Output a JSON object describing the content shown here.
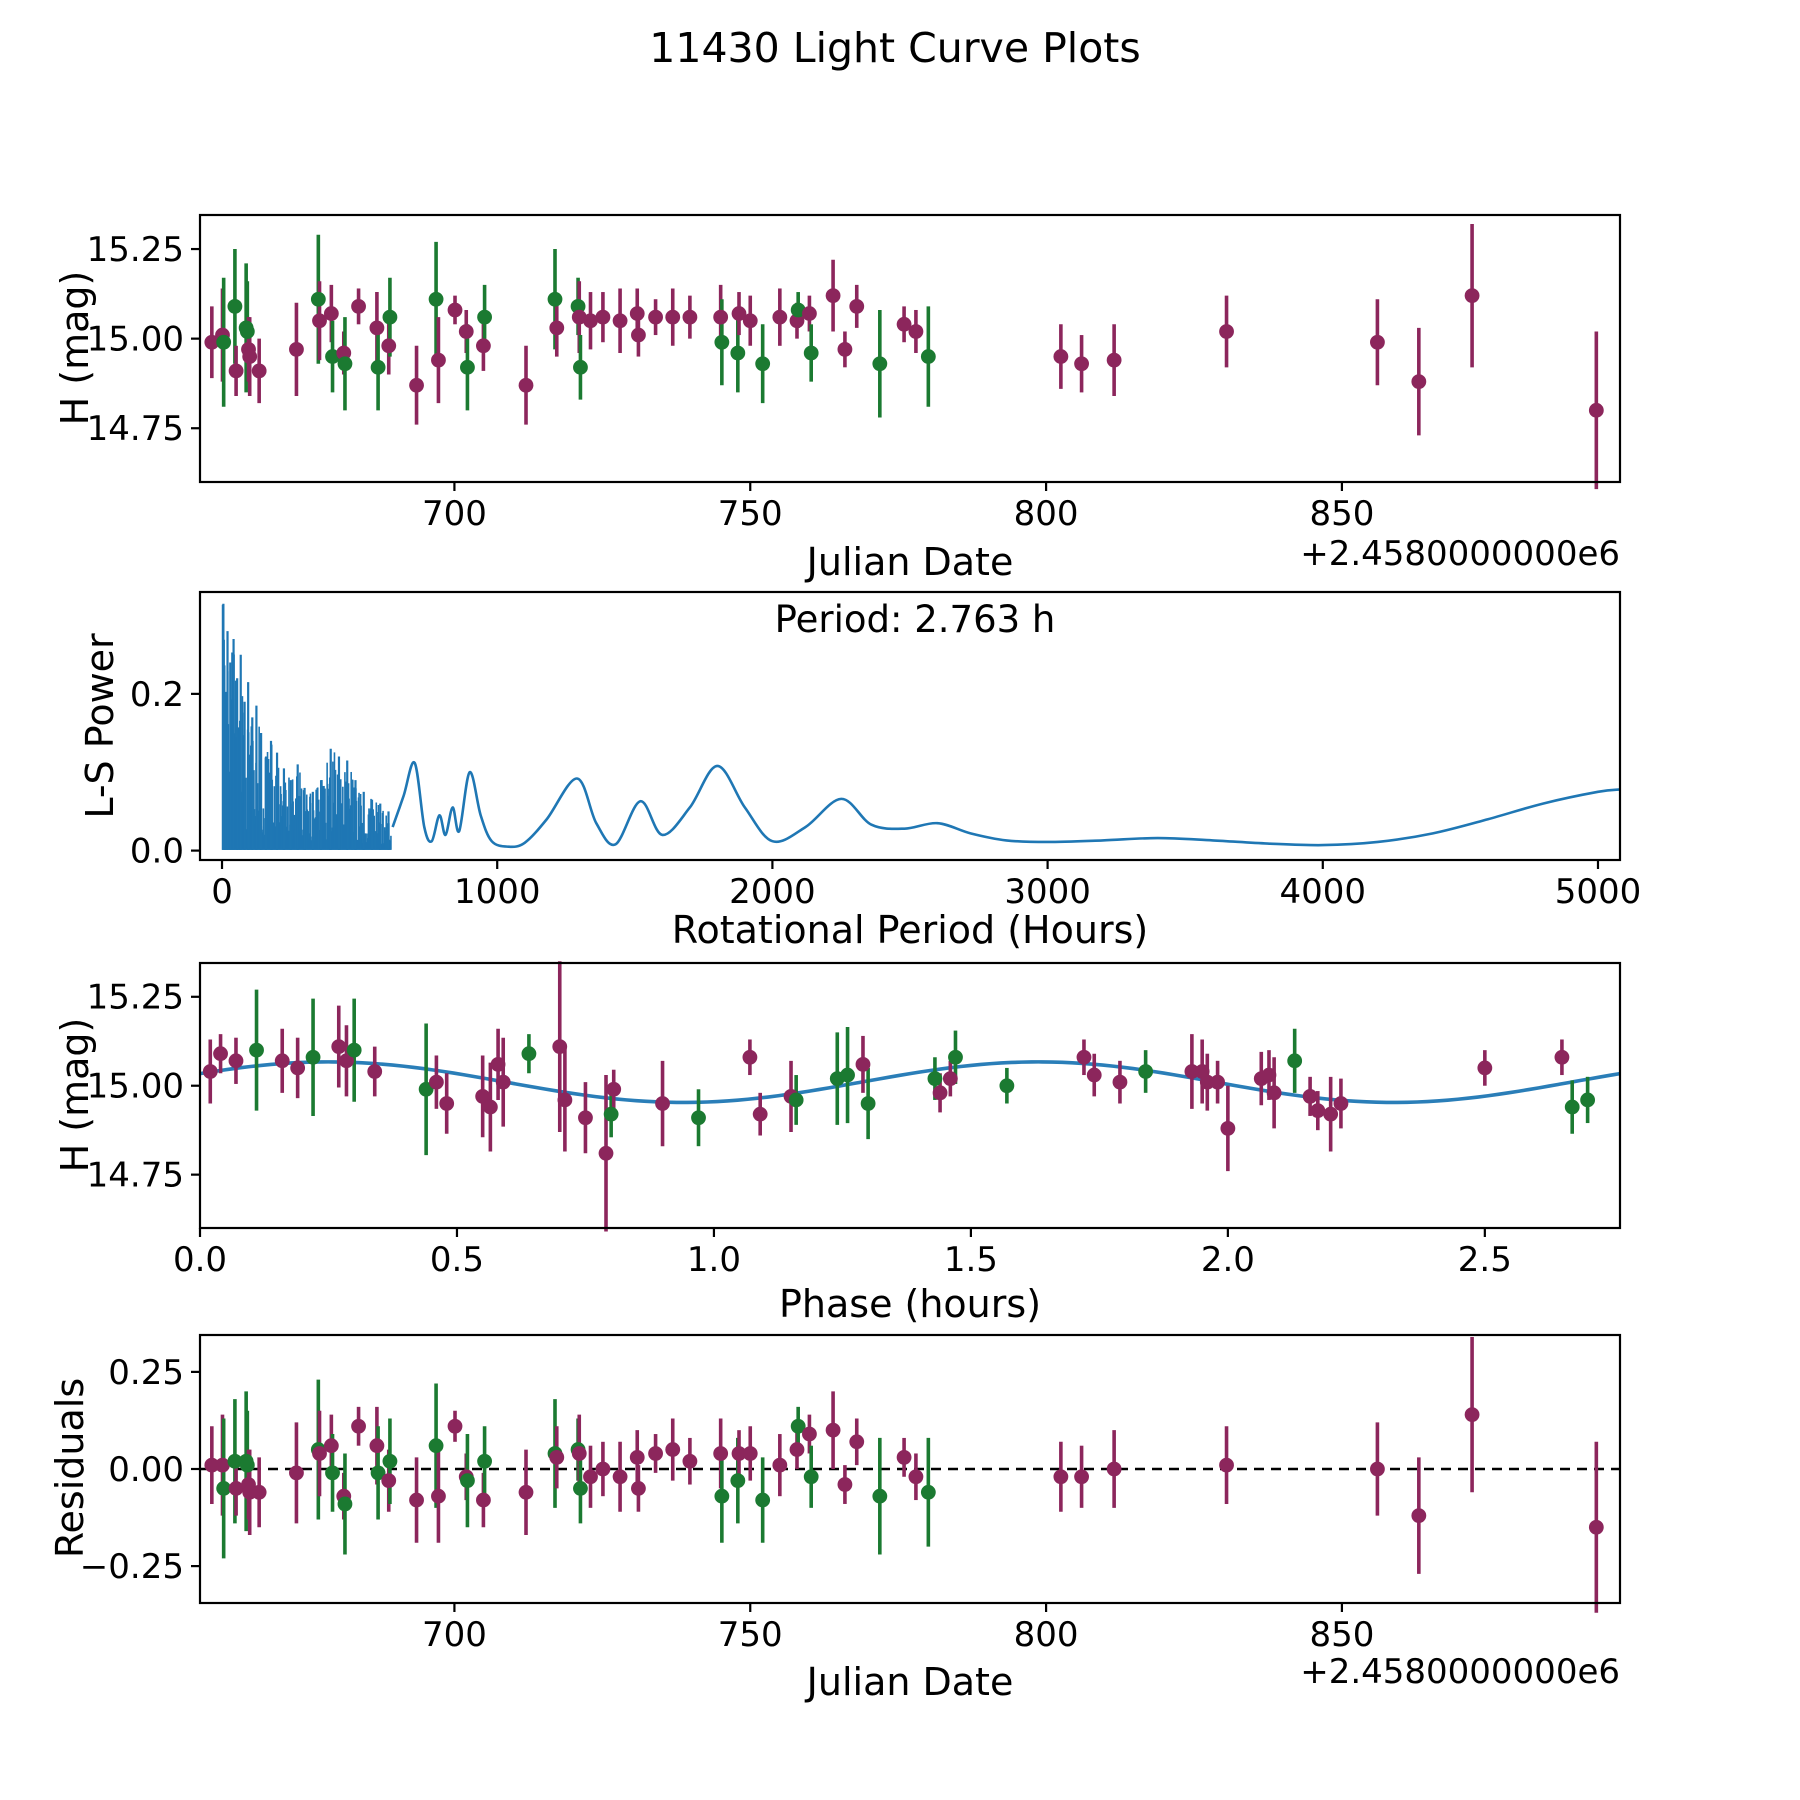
{
  "title": "11430 Light Curve Plots",
  "colors": {
    "series_purple": "#8C265C",
    "series_green": "#1B7A31",
    "curve_blue": "#1F77B4",
    "zero_line_black": "#000000",
    "frame": "#000000"
  },
  "chart_data": {
    "light_curve": {
      "type": "scatter",
      "xlabel": "Julian Date",
      "ylabel": "H (mag)",
      "x_offset_label": "+2.4580000000e6",
      "xlim": [
        657,
        897
      ],
      "ylim": [
        14.6,
        15.345
      ],
      "xticks": [
        700,
        750,
        800,
        850
      ],
      "xtick_labels": [
        "700",
        "750",
        "800",
        "850"
      ],
      "yticks": [
        14.75,
        15.0,
        15.25
      ],
      "ytick_labels": [
        "14.75",
        "15.00",
        "15.25"
      ],
      "series": [
        {
          "name": "observations-purple",
          "color_key": "series_purple"
        },
        {
          "name": "observations-green",
          "color_key": "series_green"
        }
      ]
    },
    "observations_note": "shared points: [julian_date(+2.4580000000e6), H_mag, err, residual, group p=purple g=green]; used by light_curve (jd,mag,err) and residuals (jd,residual,err)",
    "observations": [
      [
        659.0,
        14.99,
        0.1,
        0.01,
        "p"
      ],
      [
        660.8,
        15.01,
        0.13,
        0.01,
        "p"
      ],
      [
        661.0,
        14.99,
        0.18,
        -0.05,
        "g"
      ],
      [
        662.9,
        15.09,
        0.16,
        0.02,
        "g"
      ],
      [
        663.1,
        14.91,
        0.07,
        -0.05,
        "p"
      ],
      [
        664.8,
        15.03,
        0.18,
        0.02,
        "g"
      ],
      [
        665.0,
        15.02,
        0.14,
        0.01,
        "g"
      ],
      [
        665.2,
        14.97,
        0.09,
        -0.04,
        "p"
      ],
      [
        665.4,
        14.95,
        0.11,
        -0.06,
        "p"
      ],
      [
        667.0,
        14.91,
        0.09,
        -0.06,
        "p"
      ],
      [
        673.3,
        14.97,
        0.13,
        -0.01,
        "p"
      ],
      [
        677.0,
        15.11,
        0.18,
        0.05,
        "g"
      ],
      [
        677.2,
        15.05,
        0.11,
        0.04,
        "p"
      ],
      [
        679.2,
        15.07,
        0.08,
        0.06,
        "p"
      ],
      [
        679.4,
        14.95,
        0.1,
        -0.01,
        "g"
      ],
      [
        681.3,
        14.96,
        0.06,
        -0.07,
        "p"
      ],
      [
        681.5,
        14.93,
        0.13,
        -0.09,
        "g"
      ],
      [
        683.8,
        15.09,
        0.05,
        0.11,
        "p"
      ],
      [
        686.9,
        15.03,
        0.1,
        0.06,
        "p"
      ],
      [
        687.1,
        14.92,
        0.12,
        -0.01,
        "g"
      ],
      [
        688.9,
        14.98,
        0.08,
        -0.03,
        "p"
      ],
      [
        689.1,
        15.06,
        0.11,
        0.02,
        "g"
      ],
      [
        693.6,
        14.87,
        0.11,
        -0.08,
        "p"
      ],
      [
        696.9,
        15.11,
        0.16,
        0.06,
        "g"
      ],
      [
        697.3,
        14.94,
        0.12,
        -0.07,
        "p"
      ],
      [
        700.1,
        15.08,
        0.04,
        0.11,
        "p"
      ],
      [
        702.0,
        15.02,
        0.06,
        -0.02,
        "p"
      ],
      [
        702.2,
        14.92,
        0.12,
        -0.03,
        "g"
      ],
      [
        704.9,
        14.98,
        0.07,
        -0.08,
        "p"
      ],
      [
        705.1,
        15.06,
        0.09,
        0.02,
        "g"
      ],
      [
        712.1,
        14.87,
        0.11,
        -0.06,
        "p"
      ],
      [
        717.0,
        15.11,
        0.14,
        0.04,
        "g"
      ],
      [
        717.3,
        15.03,
        0.08,
        0.03,
        "p"
      ],
      [
        720.9,
        15.09,
        0.08,
        0.05,
        "g"
      ],
      [
        721.1,
        15.06,
        0.1,
        0.04,
        "p"
      ],
      [
        721.3,
        14.92,
        0.09,
        -0.05,
        "g"
      ],
      [
        723.0,
        15.05,
        0.08,
        -0.02,
        "p"
      ],
      [
        725.1,
        15.06,
        0.07,
        0.0,
        "p"
      ],
      [
        728.0,
        15.05,
        0.09,
        -0.02,
        "p"
      ],
      [
        730.9,
        15.07,
        0.07,
        0.03,
        "p"
      ],
      [
        731.1,
        15.01,
        0.06,
        -0.05,
        "p"
      ],
      [
        734.0,
        15.06,
        0.05,
        0.04,
        "p"
      ],
      [
        736.9,
        15.06,
        0.08,
        0.05,
        "p"
      ],
      [
        739.8,
        15.06,
        0.06,
        0.02,
        "p"
      ],
      [
        745.0,
        15.06,
        0.09,
        0.04,
        "p"
      ],
      [
        745.2,
        14.99,
        0.12,
        -0.07,
        "g"
      ],
      [
        747.9,
        14.96,
        0.11,
        -0.03,
        "g"
      ],
      [
        748.1,
        15.07,
        0.06,
        0.04,
        "p"
      ],
      [
        750.0,
        15.05,
        0.07,
        0.04,
        "p"
      ],
      [
        752.1,
        14.93,
        0.11,
        -0.08,
        "g"
      ],
      [
        755.0,
        15.06,
        0.08,
        0.01,
        "p"
      ],
      [
        757.9,
        15.05,
        0.05,
        0.05,
        "p"
      ],
      [
        758.1,
        15.08,
        0.05,
        0.11,
        "g"
      ],
      [
        760.0,
        15.07,
        0.05,
        0.09,
        "p"
      ],
      [
        760.3,
        14.96,
        0.08,
        -0.02,
        "g"
      ],
      [
        764.0,
        15.12,
        0.1,
        0.1,
        "p"
      ],
      [
        766.0,
        14.97,
        0.05,
        -0.04,
        "p"
      ],
      [
        768.0,
        15.09,
        0.06,
        0.07,
        "p"
      ],
      [
        771.9,
        14.93,
        0.15,
        -0.07,
        "g"
      ],
      [
        776.0,
        15.04,
        0.05,
        0.03,
        "p"
      ],
      [
        778.0,
        15.02,
        0.06,
        -0.02,
        "p"
      ],
      [
        780.1,
        14.95,
        0.14,
        -0.06,
        "g"
      ],
      [
        802.5,
        14.95,
        0.09,
        -0.02,
        "p"
      ],
      [
        806.0,
        14.93,
        0.08,
        -0.02,
        "p"
      ],
      [
        811.5,
        14.94,
        0.1,
        0.0,
        "p"
      ],
      [
        830.5,
        15.02,
        0.1,
        0.01,
        "p"
      ],
      [
        856.0,
        14.99,
        0.12,
        0.0,
        "p"
      ],
      [
        863.0,
        14.88,
        0.15,
        -0.12,
        "p"
      ],
      [
        872.0,
        15.12,
        0.2,
        0.14,
        "p"
      ],
      [
        893.0,
        14.8,
        0.22,
        -0.15,
        "p"
      ]
    ],
    "periodogram": {
      "type": "line",
      "xlabel": "Rotational Period (Hours)",
      "ylabel": "L-S Power",
      "annotation": "Period: 2.763 h",
      "best_period_hours": 2.763,
      "xlim": [
        -80,
        5080
      ],
      "ylim": [
        -0.012,
        0.33
      ],
      "xticks": [
        0,
        1000,
        2000,
        3000,
        4000,
        5000
      ],
      "xtick_labels": [
        "0",
        "1000",
        "2000",
        "3000",
        "4000",
        "5000"
      ],
      "yticks": [
        0.0,
        0.2
      ],
      "ytick_labels": [
        "0.0",
        "0.2"
      ],
      "noise_region_hours": [
        0,
        615
      ],
      "noise_spike_envelope": [
        [
          5,
          0.315
        ],
        [
          12,
          0.2
        ],
        [
          20,
          0.28
        ],
        [
          30,
          0.24
        ],
        [
          42,
          0.27
        ],
        [
          55,
          0.22
        ],
        [
          68,
          0.25
        ],
        [
          82,
          0.19
        ],
        [
          95,
          0.215
        ],
        [
          110,
          0.17
        ],
        [
          125,
          0.185
        ],
        [
          142,
          0.15
        ],
        [
          160,
          0.12
        ],
        [
          178,
          0.14
        ],
        [
          200,
          0.125
        ],
        [
          225,
          0.105
        ],
        [
          250,
          0.09
        ],
        [
          275,
          0.11
        ],
        [
          300,
          0.08
        ],
        [
          330,
          0.075
        ],
        [
          360,
          0.09
        ],
        [
          395,
          0.13
        ],
        [
          425,
          0.12
        ],
        [
          455,
          0.115
        ],
        [
          485,
          0.09
        ],
        [
          515,
          0.075
        ],
        [
          545,
          0.065
        ],
        [
          575,
          0.06
        ],
        [
          605,
          0.05
        ]
      ],
      "smooth_curve": [
        [
          620,
          0.03
        ],
        [
          660,
          0.07
        ],
        [
          700,
          0.112
        ],
        [
          735,
          0.03
        ],
        [
          762,
          0.012
        ],
        [
          790,
          0.045
        ],
        [
          812,
          0.02
        ],
        [
          838,
          0.055
        ],
        [
          862,
          0.025
        ],
        [
          900,
          0.1
        ],
        [
          940,
          0.045
        ],
        [
          980,
          0.012
        ],
        [
          1040,
          0.005
        ],
        [
          1100,
          0.01
        ],
        [
          1180,
          0.04
        ],
        [
          1290,
          0.092
        ],
        [
          1360,
          0.035
        ],
        [
          1430,
          0.008
        ],
        [
          1520,
          0.063
        ],
        [
          1600,
          0.02
        ],
        [
          1700,
          0.055
        ],
        [
          1800,
          0.108
        ],
        [
          1900,
          0.055
        ],
        [
          2000,
          0.012
        ],
        [
          2120,
          0.03
        ],
        [
          2250,
          0.066
        ],
        [
          2360,
          0.033
        ],
        [
          2480,
          0.028
        ],
        [
          2600,
          0.035
        ],
        [
          2720,
          0.022
        ],
        [
          2850,
          0.013
        ],
        [
          3000,
          0.011
        ],
        [
          3200,
          0.013
        ],
        [
          3400,
          0.016
        ],
        [
          3600,
          0.013
        ],
        [
          3800,
          0.009
        ],
        [
          4000,
          0.007
        ],
        [
          4200,
          0.011
        ],
        [
          4400,
          0.022
        ],
        [
          4600,
          0.04
        ],
        [
          4800,
          0.06
        ],
        [
          5000,
          0.075
        ],
        [
          5080,
          0.078
        ]
      ]
    },
    "phase_curve": {
      "type": "scatter+fit",
      "xlabel": "Phase (hours)",
      "ylabel": "H (mag)",
      "xlim": [
        0,
        2.763
      ],
      "ylim": [
        14.6,
        15.345
      ],
      "xticks": [
        0.0,
        0.5,
        1.0,
        1.5,
        2.0,
        2.5
      ],
      "xtick_labels": [
        "0.0",
        "0.5",
        "1.0",
        "1.5",
        "2.0",
        "2.5"
      ],
      "yticks": [
        14.75,
        15.0,
        15.25
      ],
      "ytick_labels": [
        "14.75",
        "15.00",
        "15.25"
      ],
      "fit": {
        "mean_mag": 15.01,
        "amplitude": 0.057,
        "sine_period_hours": 1.3815,
        "phase_of_max": 0.25
      },
      "points_note": "[phase_hours, H_mag, err, group p=purple g=green]",
      "points": [
        [
          0.02,
          15.04,
          0.09,
          "p"
        ],
        [
          0.04,
          15.09,
          0.055,
          "p"
        ],
        [
          0.07,
          15.07,
          0.065,
          "p"
        ],
        [
          0.11,
          15.1,
          0.17,
          "g"
        ],
        [
          0.16,
          15.07,
          0.09,
          "p"
        ],
        [
          0.19,
          15.05,
          0.085,
          "p"
        ],
        [
          0.22,
          15.08,
          0.165,
          "g"
        ],
        [
          0.27,
          15.11,
          0.115,
          "p"
        ],
        [
          0.285,
          15.07,
          0.1,
          "p"
        ],
        [
          0.3,
          15.1,
          0.145,
          "g"
        ],
        [
          0.34,
          15.04,
          0.07,
          "p"
        ],
        [
          0.44,
          14.99,
          0.185,
          "g"
        ],
        [
          0.46,
          15.01,
          0.075,
          "p"
        ],
        [
          0.48,
          14.95,
          0.085,
          "p"
        ],
        [
          0.55,
          14.97,
          0.115,
          "p"
        ],
        [
          0.565,
          14.94,
          0.125,
          "p"
        ],
        [
          0.58,
          15.06,
          0.1,
          "p"
        ],
        [
          0.59,
          15.01,
          0.125,
          "p"
        ],
        [
          0.64,
          15.09,
          0.055,
          "g"
        ],
        [
          0.7,
          15.11,
          0.24,
          "p"
        ],
        [
          0.71,
          14.96,
          0.145,
          "p"
        ],
        [
          0.75,
          14.91,
          0.1,
          "p"
        ],
        [
          0.79,
          14.81,
          0.22,
          "p"
        ],
        [
          0.8,
          14.92,
          0.065,
          "g"
        ],
        [
          0.805,
          14.99,
          0.055,
          "p"
        ],
        [
          0.9,
          14.95,
          0.12,
          "p"
        ],
        [
          0.97,
          14.91,
          0.08,
          "g"
        ],
        [
          1.07,
          15.08,
          0.05,
          "p"
        ],
        [
          1.09,
          14.92,
          0.06,
          "p"
        ],
        [
          1.15,
          14.97,
          0.1,
          "p"
        ],
        [
          1.16,
          14.96,
          0.07,
          "g"
        ],
        [
          1.24,
          15.02,
          0.13,
          "g"
        ],
        [
          1.26,
          15.03,
          0.135,
          "g"
        ],
        [
          1.29,
          15.06,
          0.08,
          "p"
        ],
        [
          1.3,
          14.95,
          0.1,
          "g"
        ],
        [
          1.43,
          15.02,
          0.06,
          "g"
        ],
        [
          1.44,
          14.98,
          0.055,
          "p"
        ],
        [
          1.46,
          15.02,
          0.05,
          "p"
        ],
        [
          1.47,
          15.08,
          0.075,
          "g"
        ],
        [
          1.57,
          15.0,
          0.05,
          "g"
        ],
        [
          1.72,
          15.08,
          0.05,
          "p"
        ],
        [
          1.74,
          15.03,
          0.06,
          "p"
        ],
        [
          1.79,
          15.01,
          0.06,
          "p"
        ],
        [
          1.84,
          15.04,
          0.06,
          "g"
        ],
        [
          1.93,
          15.04,
          0.105,
          "p"
        ],
        [
          1.95,
          15.04,
          0.09,
          "p"
        ],
        [
          1.96,
          15.01,
          0.08,
          "p"
        ],
        [
          1.98,
          15.01,
          0.06,
          "p"
        ],
        [
          2.0,
          14.88,
          0.12,
          "p"
        ],
        [
          2.065,
          15.02,
          0.075,
          "p"
        ],
        [
          2.08,
          15.03,
          0.07,
          "p"
        ],
        [
          2.09,
          14.98,
          0.1,
          "p"
        ],
        [
          2.13,
          15.07,
          0.09,
          "g"
        ],
        [
          2.16,
          14.97,
          0.055,
          "p"
        ],
        [
          2.175,
          14.93,
          0.055,
          "p"
        ],
        [
          2.2,
          14.92,
          0.105,
          "p"
        ],
        [
          2.22,
          14.95,
          0.07,
          "p"
        ],
        [
          2.5,
          15.05,
          0.05,
          "p"
        ],
        [
          2.65,
          15.08,
          0.05,
          "p"
        ],
        [
          2.67,
          14.94,
          0.075,
          "g"
        ],
        [
          2.7,
          14.96,
          0.065,
          "g"
        ]
      ]
    },
    "residuals": {
      "type": "scatter",
      "xlabel": "Julian Date",
      "ylabel": "Residuals",
      "x_offset_label": "+2.4580000000e6",
      "xlim": [
        657,
        897
      ],
      "ylim": [
        -0.345,
        0.345
      ],
      "xticks": [
        700,
        750,
        800,
        850
      ],
      "xtick_labels": [
        "700",
        "750",
        "800",
        "850"
      ],
      "yticks": [
        -0.25,
        0.0,
        0.25
      ],
      "ytick_labels": [
        "−0.25",
        "0.00",
        "0.25"
      ],
      "zero_line": 0.0
    }
  }
}
